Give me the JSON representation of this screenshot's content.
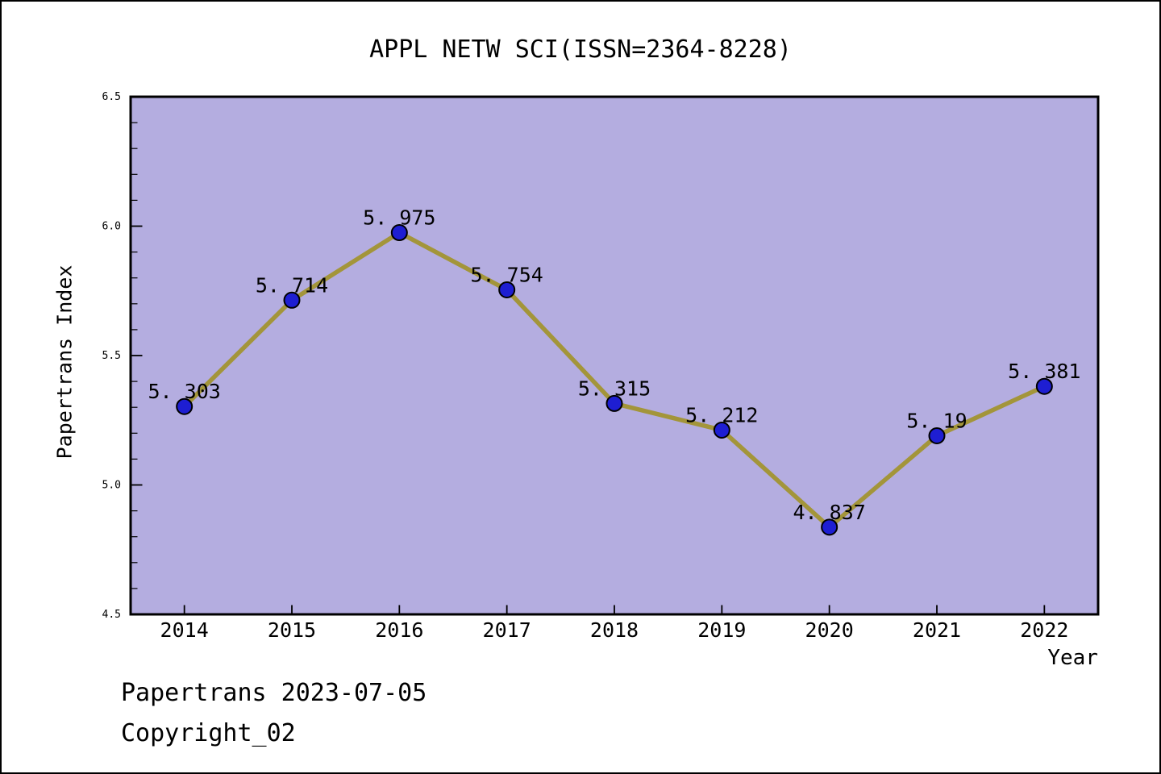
{
  "footer": {
    "line1": "Papertrans 2023-07-05",
    "line2": "Copyright_02"
  },
  "chart_data": {
    "type": "line",
    "title": "APPL NETW SCI(ISSN=2364-8228)",
    "xlabel": "Year",
    "ylabel": "Papertrans Index",
    "x": [
      2014,
      2015,
      2016,
      2017,
      2018,
      2019,
      2020,
      2021,
      2022
    ],
    "series": [
      {
        "name": "Papertrans Index",
        "values": [
          5.303,
          5.714,
          5.975,
          5.754,
          5.315,
          5.212,
          4.837,
          5.19,
          5.381
        ]
      }
    ],
    "point_labels": [
      "5.303",
      "5.714",
      "5.975",
      "5.754",
      "5.315",
      "5.212",
      "4.837",
      "5.19",
      "5.381"
    ],
    "xlim": [
      2013.5,
      2022.5
    ],
    "ylim": [
      4.5,
      6.5
    ],
    "xticklabels": [
      "2014",
      "2015",
      "2016",
      "2017",
      "2018",
      "2019",
      "2020",
      "2021",
      "2022"
    ],
    "yticks": [
      4.5,
      5.0,
      5.5,
      6.0,
      6.5
    ],
    "yticklabels": [
      "4.5",
      "5.0",
      "5.5",
      "6.0",
      "6.5"
    ],
    "ytick_minor_step": 0.1,
    "grid": false,
    "legend": "none",
    "colors": {
      "plot_bg": "#b4ade0",
      "line": "#a3953a",
      "marker_fill": "#1e1ed2",
      "marker_edge": "#000000",
      "frame": "#000000",
      "text": "#000000"
    }
  }
}
